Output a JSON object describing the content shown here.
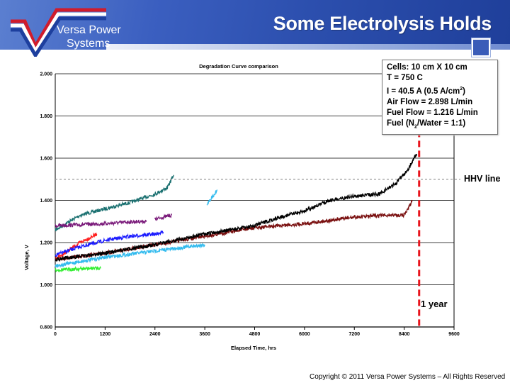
{
  "header": {
    "title": "Some Electrolysis Holds",
    "logo_line1": "Versa Power",
    "logo_line2": "Systems"
  },
  "info_box": {
    "lines": [
      "Cells: 10 cm X 10 cm",
      "T = 750  C",
      "Air Flow = 2.898 L/min",
      "Fuel Flow = 1.216 L/min"
    ],
    "current_prefix": "I = 40.5 A (0.5 A/cm",
    "current_sup": "2",
    "current_suffix": ")",
    "fuel_prefix": "Fuel (N",
    "fuel_sub": "2",
    "fuel_suffix": "/Water = 1:1)"
  },
  "annotations": {
    "hhv": "HHV line",
    "year": "1 year"
  },
  "copyright": "Copyright © 2011 Versa Power Systems – All Rights Reserved",
  "chart_data": {
    "type": "line",
    "title": "Degradation Curve comparison",
    "xlabel": "Elapsed Time, hrs",
    "ylabel": "Voltage, V",
    "xlim": [
      0,
      9600
    ],
    "ylim": [
      0.8,
      2.0
    ],
    "xticks": [
      "0",
      "1200",
      "2400",
      "3600",
      "4800",
      "6000",
      "7200",
      "8400",
      "9600"
    ],
    "yticks": [
      "0.800",
      "1.000",
      "1.200",
      "1.400",
      "1.600",
      "1.800",
      "2.000"
    ],
    "grid": "horizontal",
    "hhv_line": 1.5,
    "year_line": 8760,
    "colors": {
      "hhv": "#999999",
      "year": "#e8141c"
    },
    "series": [
      {
        "color": "#1a7070",
        "points": [
          [
            0,
            1.26
          ],
          [
            600,
            1.33
          ],
          [
            1200,
            1.36
          ],
          [
            1800,
            1.39
          ],
          [
            2400,
            1.43
          ],
          [
            2700,
            1.46
          ],
          [
            2850,
            1.52
          ]
        ]
      },
      {
        "color": "#7a1a7a",
        "points": [
          [
            0,
            1.28
          ],
          [
            1200,
            1.29
          ],
          [
            2000,
            1.3
          ],
          [
            2200,
            1.3
          ]
        ]
      },
      {
        "color": "#7a1a7a",
        "points": [
          [
            2400,
            1.31
          ],
          [
            2800,
            1.33
          ]
        ]
      },
      {
        "color": "#ff1a1a",
        "points": [
          [
            0,
            1.12
          ],
          [
            600,
            1.2
          ],
          [
            1000,
            1.24
          ]
        ]
      },
      {
        "color": "#1a1aff",
        "points": [
          [
            0,
            1.14
          ],
          [
            600,
            1.18
          ],
          [
            1200,
            1.21
          ],
          [
            1800,
            1.23
          ],
          [
            2400,
            1.24
          ],
          [
            2600,
            1.25
          ]
        ]
      },
      {
        "color": "#33ee33",
        "points": [
          [
            0,
            1.07
          ],
          [
            1100,
            1.08
          ]
        ]
      },
      {
        "color": "#33bbee",
        "points": [
          [
            0,
            1.09
          ],
          [
            1200,
            1.13
          ],
          [
            2400,
            1.16
          ],
          [
            3600,
            1.19
          ]
        ]
      },
      {
        "color": "#33bbee",
        "points": [
          [
            3650,
            1.38
          ],
          [
            3900,
            1.45
          ]
        ]
      },
      {
        "color": "#7a1010",
        "points": [
          [
            0,
            1.12
          ],
          [
            1200,
            1.15
          ],
          [
            2400,
            1.19
          ],
          [
            3600,
            1.23
          ],
          [
            4800,
            1.27
          ],
          [
            6000,
            1.29
          ],
          [
            7200,
            1.32
          ],
          [
            8000,
            1.33
          ],
          [
            8400,
            1.33
          ],
          [
            8600,
            1.4
          ]
        ]
      },
      {
        "color": "#000000",
        "points": [
          [
            0,
            1.12
          ],
          [
            1200,
            1.15
          ],
          [
            2400,
            1.19
          ],
          [
            3600,
            1.24
          ],
          [
            4800,
            1.28
          ],
          [
            5400,
            1.32
          ],
          [
            6000,
            1.35
          ],
          [
            6600,
            1.4
          ],
          [
            7200,
            1.42
          ],
          [
            7800,
            1.43
          ],
          [
            8200,
            1.48
          ],
          [
            8500,
            1.55
          ],
          [
            8700,
            1.62
          ]
        ]
      }
    ]
  }
}
